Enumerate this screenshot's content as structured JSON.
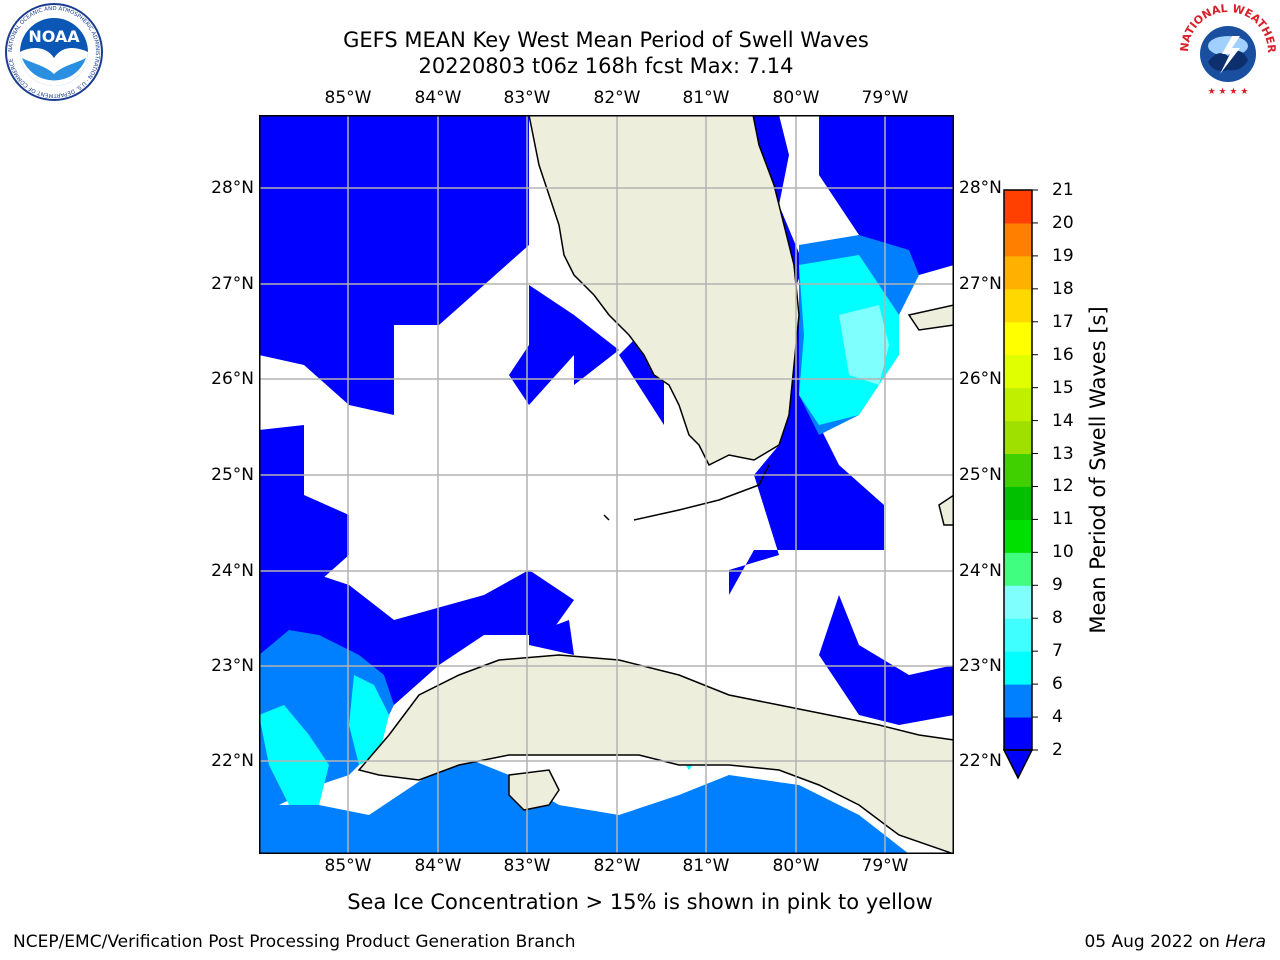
{
  "title": {
    "line1": "GEFS MEAN Key West Mean Period of Swell Waves",
    "line2": "20220803 t06z 168h fcst   Max: 7.14"
  },
  "map": {
    "lon_labels": [
      "85°W",
      "84°W",
      "83°W",
      "82°W",
      "81°W",
      "80°W",
      "79°W"
    ],
    "lat_labels": [
      "28°N",
      "27°N",
      "26°N",
      "25°N",
      "24°N",
      "23°N",
      "22°N"
    ],
    "colors": {
      "land": "#eeeedd",
      "grid": "#b3b3b3",
      "band_2_4": "#0000ff",
      "band_4_6": "#0080ff",
      "band_6_8": "#00ffff",
      "band_8_9": "#80ffff"
    }
  },
  "colorbar": {
    "label": "Mean Period of Swell Waves [s]",
    "ticks": [
      "2",
      "4",
      "6",
      "7",
      "8",
      "9",
      "10",
      "11",
      "12",
      "13",
      "14",
      "15",
      "16",
      "17",
      "18",
      "19",
      "20",
      "21"
    ],
    "colors": [
      "#0000ff",
      "#0080ff",
      "#00ffff",
      "#40ffff",
      "#80ffff",
      "#40ff80",
      "#00e000",
      "#00c000",
      "#40d000",
      "#a0e000",
      "#c0f000",
      "#e0ff00",
      "#ffff00",
      "#ffd800",
      "#ffb000",
      "#ff8000",
      "#ff4000",
      "#ff0000"
    ]
  },
  "caption": "Sea Ice Concentration > 15% is shown in pink to yellow",
  "footer": {
    "left": "NCEP/EMC/Verification Post Processing Product Generation Branch",
    "right_date": "05 Aug 2022 on ",
    "right_host": "Hera"
  },
  "logos": {
    "noaa_text": "NOAA",
    "noaa_ring": "NATIONAL OCEANIC AND ATMOSPHERIC ADMINISTRATION · U.S. DEPARTMENT OF COMMERCE",
    "nws_ring": "NATIONAL WEATHER SERVICE"
  }
}
